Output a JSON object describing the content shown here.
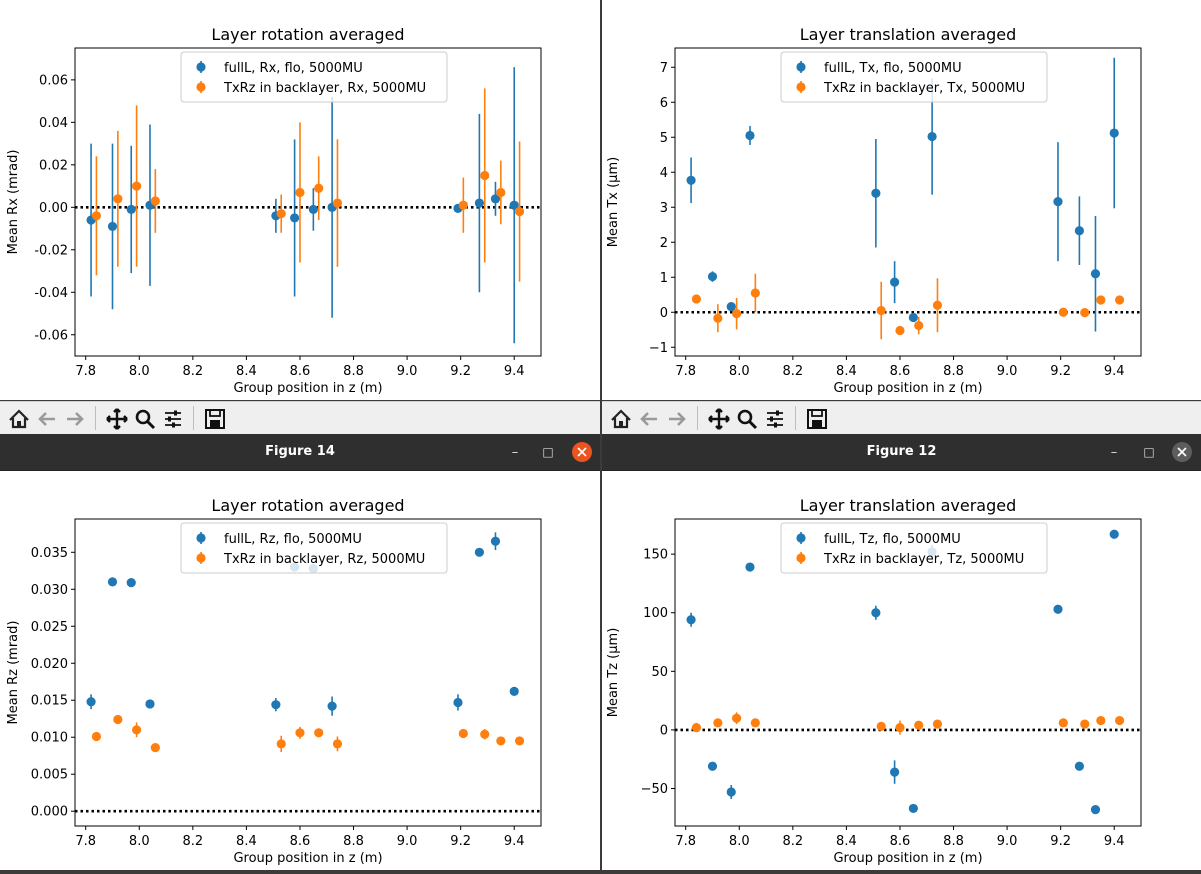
{
  "colors": {
    "series1": "#1f77b4",
    "series2": "#ff7f0e",
    "close_active": "#e95420",
    "close_inactive": "#5d5d5d"
  },
  "toolbar_icons": [
    "home-icon",
    "back-icon",
    "forward-icon",
    "pan-icon",
    "zoom-icon",
    "configure-subplots-icon",
    "save-icon"
  ],
  "windows": [
    {
      "title": "Figure 14",
      "close_active": true,
      "minimize_glyph": "–",
      "maximize_glyph": "□",
      "close_glyph": "×"
    },
    {
      "title": "Figure 12",
      "close_active": false,
      "minimize_glyph": "–",
      "maximize_glyph": "□",
      "close_glyph": "×"
    }
  ],
  "chart_data": [
    {
      "type": "scatter",
      "title": "Layer rotation averaged",
      "xlabel": "Group position in z (m)",
      "ylabel": "Mean Rx (mrad)",
      "xlim": [
        7.76,
        9.5
      ],
      "ylim": [
        -0.07,
        0.075
      ],
      "xticks": [
        "7.8",
        "8.0",
        "8.2",
        "8.4",
        "8.6",
        "8.8",
        "9.0",
        "9.2",
        "9.4"
      ],
      "yticks": [
        "-0.06",
        "-0.04",
        "-0.02",
        "0.00",
        "0.02",
        "0.04",
        "0.06"
      ],
      "legend_position": "top-center",
      "reference_line": 0,
      "series": [
        {
          "name": "fullL, Rx, flo, 5000MU",
          "x": [
            7.82,
            7.9,
            7.97,
            8.04,
            8.51,
            8.58,
            8.65,
            8.72,
            9.19,
            9.27,
            9.33,
            9.4
          ],
          "y": [
            -0.006,
            -0.009,
            -0.001,
            0.001,
            -0.004,
            -0.005,
            -0.001,
            0.0,
            -0.0005,
            0.002,
            0.004,
            0.001
          ],
          "err": [
            0.036,
            0.039,
            0.03,
            0.038,
            0.008,
            0.037,
            0.01,
            0.052,
            0.0,
            0.042,
            0.008,
            0.065
          ]
        },
        {
          "name": "TxRz in backlayer, Rx, 5000MU",
          "x": [
            7.84,
            7.92,
            7.99,
            8.06,
            8.53,
            8.6,
            8.67,
            8.74,
            9.21,
            9.29,
            9.35,
            9.42
          ],
          "y": [
            -0.004,
            0.004,
            0.01,
            0.003,
            -0.003,
            0.007,
            0.009,
            0.002,
            0.001,
            0.015,
            0.007,
            -0.002
          ],
          "err": [
            0.028,
            0.032,
            0.038,
            0.015,
            0.009,
            0.033,
            0.015,
            0.03,
            0.013,
            0.041,
            0.015,
            0.033
          ]
        }
      ]
    },
    {
      "type": "scatter",
      "title": "Layer translation averaged",
      "xlabel": "Group position in z (m)",
      "ylabel": "Mean Tx (μm)",
      "xlim": [
        7.76,
        9.5
      ],
      "ylim": [
        -1.25,
        7.55
      ],
      "xticks": [
        "7.8",
        "8.0",
        "8.2",
        "8.4",
        "8.6",
        "8.8",
        "9.0",
        "9.2",
        "9.4"
      ],
      "yticks": [
        "−1",
        "0",
        "1",
        "2",
        "3",
        "4",
        "5",
        "6",
        "7"
      ],
      "legend_position": "top-center",
      "reference_line": 0,
      "series": [
        {
          "name": "fullL, Tx, flo, 5000MU",
          "x": [
            7.82,
            7.9,
            7.97,
            8.04,
            8.51,
            8.58,
            8.65,
            8.72,
            9.19,
            9.27,
            9.33,
            9.4
          ],
          "y": [
            3.77,
            1.02,
            0.16,
            5.05,
            3.4,
            0.86,
            -0.15,
            5.02,
            3.16,
            2.33,
            1.1,
            5.12
          ],
          "err": [
            0.65,
            0.15,
            0.08,
            0.27,
            1.55,
            0.6,
            0.12,
            1.66,
            1.7,
            0.98,
            1.65,
            2.15
          ]
        },
        {
          "name": "TxRz in backlayer, Tx, 5000MU",
          "x": [
            7.84,
            7.92,
            7.99,
            8.06,
            8.53,
            8.6,
            8.67,
            8.74,
            9.21,
            9.29,
            9.35,
            9.42
          ],
          "y": [
            0.38,
            -0.17,
            -0.04,
            0.55,
            0.05,
            -0.52,
            -0.38,
            0.2,
            0.0,
            -0.01,
            0.35,
            0.35
          ],
          "err": [
            0.0,
            0.4,
            0.45,
            0.55,
            0.82,
            0.1,
            0.25,
            0.77,
            0.0,
            0.0,
            0.0,
            0.0
          ]
        }
      ]
    },
    {
      "type": "scatter",
      "title": "Layer rotation averaged",
      "xlabel": "Group position in z (m)",
      "ylabel": "Mean Rz (mrad)",
      "xlim": [
        7.76,
        9.5
      ],
      "ylim": [
        -0.002,
        0.0395
      ],
      "xticks": [
        "7.8",
        "8.0",
        "8.2",
        "8.4",
        "8.6",
        "8.8",
        "9.0",
        "9.2",
        "9.4"
      ],
      "yticks": [
        "0.000",
        "0.005",
        "0.010",
        "0.015",
        "0.020",
        "0.025",
        "0.030",
        "0.035"
      ],
      "legend_position": "top-center",
      "reference_line": 0,
      "series": [
        {
          "name": "fullL, Rz, flo, 5000MU",
          "x": [
            7.82,
            7.9,
            7.97,
            8.04,
            8.51,
            8.58,
            8.65,
            8.72,
            9.19,
            9.27,
            9.33,
            9.4
          ],
          "y": [
            0.0148,
            0.031,
            0.0309,
            0.0145,
            0.0144,
            0.033,
            0.0328,
            0.0142,
            0.0147,
            0.035,
            0.0365,
            0.0162
          ],
          "err": [
            0.001,
            0.0003,
            0.0004,
            0.0003,
            0.0009,
            0.0003,
            0.0006,
            0.0013,
            0.0011,
            0.0003,
            0.0012,
            0.0003
          ]
        },
        {
          "name": "TxRz in backlayer, Rz, 5000MU",
          "x": [
            7.84,
            7.92,
            7.99,
            8.06,
            8.53,
            8.6,
            8.67,
            8.74,
            9.21,
            9.29,
            9.35,
            9.42
          ],
          "y": [
            0.0101,
            0.0124,
            0.011,
            0.0086,
            0.0091,
            0.0106,
            0.0106,
            0.0091,
            0.0105,
            0.0104,
            0.0095,
            0.0095
          ],
          "err": [
            0.0003,
            0.0003,
            0.001,
            0.0003,
            0.0011,
            0.0008,
            0.0006,
            0.001,
            0.0006,
            0.0007,
            0.0003,
            0.0003
          ]
        }
      ]
    },
    {
      "type": "scatter",
      "title": "Layer translation averaged",
      "xlabel": "Group position in z (m)",
      "ylabel": "Mean Tz (μm)",
      "xlim": [
        7.76,
        9.5
      ],
      "ylim": [
        -82,
        180
      ],
      "xticks": [
        "7.8",
        "8.0",
        "8.2",
        "8.4",
        "8.6",
        "8.8",
        "9.0",
        "9.2",
        "9.4"
      ],
      "yticks": [
        "−50",
        "0",
        "50",
        "100",
        "150"
      ],
      "legend_position": "top-center",
      "reference_line": 0,
      "series": [
        {
          "name": "fullL, Tz, flo, 5000MU",
          "x": [
            7.82,
            7.9,
            7.97,
            8.04,
            8.51,
            8.58,
            8.65,
            8.72,
            9.19,
            9.27,
            9.33,
            9.4
          ],
          "y": [
            94,
            -31,
            -53,
            139,
            100,
            -36,
            -67,
            152,
            103,
            -31,
            -68,
            167
          ],
          "err": [
            6,
            2,
            6,
            2,
            6,
            10,
            2,
            6,
            2,
            2,
            2,
            2
          ]
        },
        {
          "name": "TxRz in backlayer, Tz, 5000MU",
          "x": [
            7.84,
            7.92,
            7.99,
            8.06,
            8.53,
            8.6,
            8.67,
            8.74,
            9.21,
            9.29,
            9.35,
            9.42
          ],
          "y": [
            2,
            6,
            10,
            6,
            3,
            2,
            4,
            5,
            6,
            5,
            8,
            8
          ],
          "err": [
            4,
            2,
            5,
            3,
            3,
            6,
            2,
            2,
            2,
            2,
            2,
            2
          ]
        }
      ]
    }
  ]
}
